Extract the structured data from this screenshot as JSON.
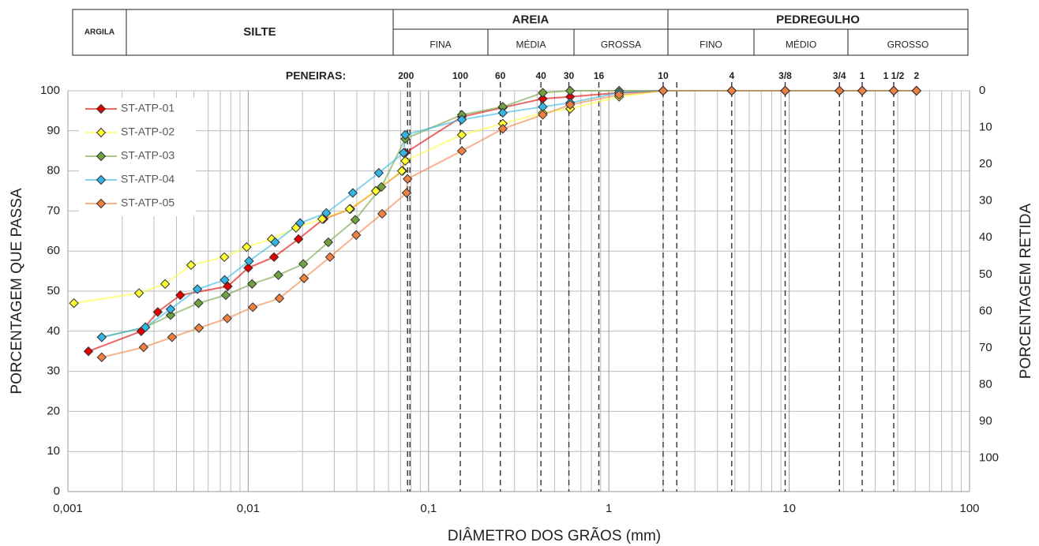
{
  "chart_data": {
    "type": "line",
    "soil_classes": [
      {
        "name": "ARGILA"
      },
      {
        "name": "SILTE"
      },
      {
        "name": "AREIA",
        "sub": [
          "FINA",
          "MÉDIA",
          "GROSSA"
        ]
      },
      {
        "name": "PEDREGULHO",
        "sub": [
          "FINO",
          "MÉDIO",
          "GROSSO"
        ]
      }
    ],
    "sieves_title": "PENEIRAS:",
    "sieves": [
      {
        "label": "200",
        "value": 0.075
      },
      {
        "label": "100",
        "value": 0.15
      },
      {
        "label": "60",
        "value": 0.25
      },
      {
        "label": "40",
        "value": 0.42
      },
      {
        "label": "30",
        "value": 0.6
      },
      {
        "label": "16",
        "value": 0.88
      },
      {
        "label": "10",
        "value": 2.0
      },
      {
        "label": "4",
        "value": 4.8
      },
      {
        "label": "3/8",
        "value": 9.5
      },
      {
        "label": "3/4",
        "value": 19
      },
      {
        "label": "1",
        "value": 25.4
      },
      {
        "label": "1 1/2",
        "value": 38
      },
      {
        "label": "2",
        "value": 50.8
      }
    ],
    "sieve_lines": [
      0.0765,
      0.0788,
      0.15,
      0.25,
      0.42,
      0.6,
      0.88,
      2.0,
      2.38,
      4.8,
      9.5,
      19,
      25.4,
      38
    ],
    "x_label": "DIÂMETRO DOS GRÃOS (mm)",
    "y_label": "PORCENTAGEM QUE PASSA",
    "y2_label": "PORCENTAGEM RETIDA",
    "x_scale": "log",
    "xlim": [
      0.001,
      100
    ],
    "xticks": [
      {
        "value": 0.001,
        "label": "0,001"
      },
      {
        "value": 0.01,
        "label": "0,01"
      },
      {
        "value": 0.1,
        "label": "0,1"
      },
      1,
      10,
      100
    ],
    "ylim": [
      0,
      100
    ],
    "yticks": [
      0,
      10,
      20,
      30,
      40,
      50,
      60,
      70,
      80,
      90,
      100
    ],
    "y2lim": [
      109.1,
      0
    ],
    "y2ticks": [
      0,
      10,
      20,
      30,
      40,
      50,
      60,
      70,
      80,
      90,
      100
    ],
    "grid": true,
    "minor_grid": true,
    "legend": "upper left",
    "series": [
      {
        "name": "ST-ATP-01",
        "color": "#e00000",
        "x": [
          0.0013,
          0.00255,
          0.00315,
          0.0042,
          0.0077,
          0.01,
          0.0139,
          0.019,
          0.0262,
          0.0369,
          0.051,
          0.0718,
          0.0743,
          0.153,
          0.258,
          0.43,
          0.61,
          1.14,
          2.0,
          4.8,
          9.5,
          19,
          25.4,
          38,
          50.8
        ],
        "values": [
          35,
          40,
          44.8,
          49,
          51.2,
          55.8,
          58.5,
          63,
          68,
          70.5,
          75,
          80,
          84.5,
          93.5,
          95.8,
          98,
          98.5,
          99.5,
          100,
          100,
          100,
          100,
          100,
          100,
          100
        ]
      },
      {
        "name": "ST-ATP-02",
        "color": "#ffff33",
        "x": [
          0.00108,
          0.00248,
          0.00346,
          0.00482,
          0.00738,
          0.0098,
          0.0135,
          0.0184,
          0.0257,
          0.0365,
          0.051,
          0.0711,
          0.0743,
          0.153,
          0.258,
          0.43,
          0.61,
          1.14,
          2.0,
          4.8,
          9.5,
          19,
          25.4,
          38,
          50.8
        ],
        "values": [
          47,
          49.5,
          51.8,
          56.5,
          58.5,
          61,
          63,
          65.8,
          68,
          70.5,
          75,
          80,
          82.5,
          89,
          91.8,
          94.5,
          95.5,
          98.5,
          100,
          100,
          100,
          100,
          100,
          100,
          100
        ]
      },
      {
        "name": "ST-ATP-03",
        "color": "#70a040",
        "x": [
          0.00154,
          0.00269,
          0.00371,
          0.0053,
          0.00751,
          0.0105,
          0.0147,
          0.0202,
          0.0278,
          0.0392,
          0.0548,
          0.0743,
          0.153,
          0.258,
          0.43,
          0.61,
          1.14,
          2.0,
          4.8,
          9.5,
          19,
          25.4,
          38,
          50.8
        ],
        "values": [
          38.5,
          41,
          44,
          47,
          49,
          51.8,
          54,
          56.8,
          62.2,
          67.8,
          76,
          88,
          94,
          96,
          99.5,
          100,
          100,
          100,
          100,
          100,
          100,
          100,
          100,
          100
        ]
      },
      {
        "name": "ST-ATP-04",
        "color": "#33b5e5",
        "x": [
          0.00154,
          0.00269,
          0.00371,
          0.00523,
          0.0074,
          0.0101,
          0.0141,
          0.0194,
          0.0271,
          0.038,
          0.053,
          0.0727,
          0.0743,
          0.153,
          0.258,
          0.43,
          0.61,
          1.14,
          2.0,
          4.8,
          9.5,
          19,
          25.4,
          38,
          50.8
        ],
        "values": [
          38.5,
          41,
          45.5,
          50.5,
          52.8,
          57.5,
          62.2,
          67,
          69.5,
          74.5,
          79.5,
          84.5,
          89,
          92.8,
          94.5,
          96,
          97,
          99.5,
          100,
          100,
          100,
          100,
          100,
          100,
          100
        ]
      },
      {
        "name": "ST-ATP-05",
        "color": "#f08040",
        "x": [
          0.00154,
          0.00263,
          0.00378,
          0.00533,
          0.00765,
          0.0106,
          0.0149,
          0.0204,
          0.0284,
          0.0397,
          0.0553,
          0.0755,
          0.0765,
          0.153,
          0.258,
          0.43,
          0.61,
          1.14,
          2.0,
          4.8,
          9.5,
          19,
          25.4,
          38,
          50.8
        ],
        "values": [
          33.5,
          36,
          38.5,
          40.8,
          43.2,
          46,
          48.2,
          53.2,
          58.5,
          64,
          69.3,
          74.5,
          78,
          85,
          90.5,
          94,
          96.5,
          99,
          100,
          100,
          100,
          100,
          100,
          100,
          100
        ]
      }
    ]
  }
}
